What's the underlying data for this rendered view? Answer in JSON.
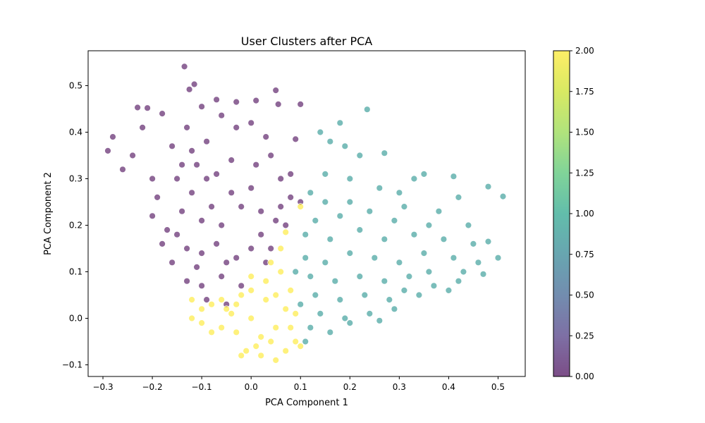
{
  "chart_data": {
    "type": "scatter",
    "title": "User Clusters after PCA",
    "xlabel": "PCA Component 1",
    "ylabel": "PCA Component 2",
    "xlim": [
      -0.33,
      0.555
    ],
    "ylim": [
      -0.125,
      0.575
    ],
    "x_ticks": [
      -0.3,
      -0.2,
      -0.1,
      0.0,
      0.1,
      0.2,
      0.3,
      0.4,
      0.5
    ],
    "x_tick_labels": [
      "−0.3",
      "−0.2",
      "−0.1",
      "0.0",
      "0.1",
      "0.2",
      "0.3",
      "0.4",
      "0.5"
    ],
    "y_ticks": [
      -0.1,
      0.0,
      0.1,
      0.2,
      0.3,
      0.4,
      0.5
    ],
    "y_tick_labels": [
      "−0.1",
      "0.0",
      "0.1",
      "0.2",
      "0.3",
      "0.4",
      "0.5"
    ],
    "grid": false,
    "marker_alpha": 0.6,
    "marker_edge_color": "#ffffff",
    "colormap": "viridis",
    "colorbar": {
      "range": [
        0.0,
        2.0
      ],
      "ticks": [
        0.0,
        0.25,
        0.5,
        0.75,
        1.0,
        1.25,
        1.5,
        1.75,
        2.0
      ],
      "tick_labels": [
        "0.00",
        "0.25",
        "0.50",
        "0.75",
        "1.00",
        "1.25",
        "1.50",
        "1.75",
        "2.00"
      ],
      "colors": [
        "#440154",
        "#21918c",
        "#fde725"
      ]
    },
    "series": [
      {
        "cluster": 0,
        "color": "#440154",
        "points": [
          [
            -0.135,
            0.541
          ],
          [
            -0.115,
            0.503
          ],
          [
            -0.125,
            0.492
          ],
          [
            0.05,
            0.49
          ],
          [
            -0.23,
            0.453
          ],
          [
            -0.21,
            0.452
          ],
          [
            -0.07,
            0.47
          ],
          [
            -0.03,
            0.465
          ],
          [
            -0.29,
            0.36
          ],
          [
            -0.28,
            0.39
          ],
          [
            -0.18,
            0.44
          ],
          [
            -0.13,
            0.41
          ],
          [
            -0.1,
            0.455
          ],
          [
            -0.06,
            0.436
          ],
          [
            0.01,
            0.468
          ],
          [
            0.055,
            0.46
          ],
          [
            0.1,
            0.46
          ],
          [
            -0.26,
            0.32
          ],
          [
            -0.24,
            0.35
          ],
          [
            -0.22,
            0.41
          ],
          [
            -0.16,
            0.37
          ],
          [
            -0.12,
            0.36
          ],
          [
            -0.09,
            0.38
          ],
          [
            -0.03,
            0.41
          ],
          [
            0.0,
            0.42
          ],
          [
            0.03,
            0.39
          ],
          [
            0.09,
            0.385
          ],
          [
            -0.2,
            0.3
          ],
          [
            -0.19,
            0.26
          ],
          [
            -0.15,
            0.3
          ],
          [
            -0.11,
            0.33
          ],
          [
            -0.07,
            0.31
          ],
          [
            -0.04,
            0.34
          ],
          [
            0.01,
            0.33
          ],
          [
            0.04,
            0.35
          ],
          [
            0.06,
            0.3
          ],
          [
            -0.2,
            0.22
          ],
          [
            -0.17,
            0.19
          ],
          [
            -0.14,
            0.23
          ],
          [
            -0.1,
            0.21
          ],
          [
            -0.06,
            0.2
          ],
          [
            -0.02,
            0.24
          ],
          [
            0.02,
            0.23
          ],
          [
            0.05,
            0.21
          ],
          [
            0.08,
            0.26
          ],
          [
            -0.16,
            0.12
          ],
          [
            -0.13,
            0.15
          ],
          [
            -0.1,
            0.14
          ],
          [
            -0.07,
            0.16
          ],
          [
            -0.03,
            0.13
          ],
          [
            0.0,
            0.15
          ],
          [
            0.03,
            0.12
          ],
          [
            -0.13,
            0.08
          ],
          [
            -0.1,
            0.07
          ],
          [
            -0.06,
            0.09
          ],
          [
            -0.02,
            0.07
          ],
          [
            -0.09,
            0.04
          ],
          [
            -0.05,
            0.03
          ],
          [
            -0.12,
            0.27
          ],
          [
            0.07,
            0.2
          ],
          [
            0.1,
            0.25
          ],
          [
            -0.04,
            0.27
          ],
          [
            0.06,
            0.24
          ],
          [
            -0.15,
            0.18
          ],
          [
            -0.08,
            0.24
          ],
          [
            0.02,
            0.18
          ],
          [
            -0.11,
            0.11
          ],
          [
            -0.05,
            0.12
          ],
          [
            0.04,
            0.15
          ],
          [
            -0.18,
            0.16
          ],
          [
            -0.09,
            0.3
          ],
          [
            0.0,
            0.28
          ],
          [
            -0.14,
            0.33
          ],
          [
            0.08,
            0.31
          ]
        ]
      },
      {
        "cluster": 1,
        "color": "#21918c",
        "points": [
          [
            0.235,
            0.449
          ],
          [
            0.18,
            0.42
          ],
          [
            0.14,
            0.4
          ],
          [
            0.16,
            0.38
          ],
          [
            0.19,
            0.37
          ],
          [
            0.22,
            0.35
          ],
          [
            0.27,
            0.355
          ],
          [
            0.35,
            0.31
          ],
          [
            0.41,
            0.305
          ],
          [
            0.33,
            0.3
          ],
          [
            0.48,
            0.283
          ],
          [
            0.51,
            0.262
          ],
          [
            0.42,
            0.26
          ],
          [
            0.3,
            0.27
          ],
          [
            0.26,
            0.28
          ],
          [
            0.2,
            0.3
          ],
          [
            0.15,
            0.31
          ],
          [
            0.12,
            0.27
          ],
          [
            0.24,
            0.23
          ],
          [
            0.31,
            0.24
          ],
          [
            0.38,
            0.23
          ],
          [
            0.44,
            0.2
          ],
          [
            0.36,
            0.2
          ],
          [
            0.29,
            0.21
          ],
          [
            0.18,
            0.22
          ],
          [
            0.13,
            0.21
          ],
          [
            0.11,
            0.18
          ],
          [
            0.16,
            0.17
          ],
          [
            0.22,
            0.19
          ],
          [
            0.27,
            0.17
          ],
          [
            0.33,
            0.18
          ],
          [
            0.39,
            0.17
          ],
          [
            0.45,
            0.16
          ],
          [
            0.48,
            0.165
          ],
          [
            0.5,
            0.13
          ],
          [
            0.46,
            0.12
          ],
          [
            0.41,
            0.13
          ],
          [
            0.35,
            0.14
          ],
          [
            0.3,
            0.12
          ],
          [
            0.25,
            0.13
          ],
          [
            0.2,
            0.14
          ],
          [
            0.15,
            0.12
          ],
          [
            0.11,
            0.13
          ],
          [
            0.12,
            0.09
          ],
          [
            0.17,
            0.08
          ],
          [
            0.22,
            0.09
          ],
          [
            0.27,
            0.08
          ],
          [
            0.32,
            0.09
          ],
          [
            0.37,
            0.07
          ],
          [
            0.42,
            0.08
          ],
          [
            0.47,
            0.095
          ],
          [
            0.4,
            0.06
          ],
          [
            0.34,
            0.05
          ],
          [
            0.28,
            0.04
          ],
          [
            0.23,
            0.05
          ],
          [
            0.18,
            0.04
          ],
          [
            0.13,
            0.05
          ],
          [
            0.1,
            0.03
          ],
          [
            0.14,
            0.01
          ],
          [
            0.19,
            0.0
          ],
          [
            0.24,
            0.01
          ],
          [
            0.29,
            0.02
          ],
          [
            0.12,
            -0.02
          ],
          [
            0.16,
            -0.03
          ],
          [
            0.11,
            -0.05
          ],
          [
            0.2,
            -0.01
          ],
          [
            0.26,
            -0.005
          ],
          [
            0.31,
            0.06
          ],
          [
            0.36,
            0.1
          ],
          [
            0.43,
            0.1
          ],
          [
            0.15,
            0.25
          ],
          [
            0.2,
            0.25
          ],
          [
            0.09,
            0.1
          ]
        ]
      },
      {
        "cluster": 2,
        "color": "#fde725",
        "points": [
          [
            -0.12,
            0.04
          ],
          [
            -0.12,
            0.0
          ],
          [
            -0.1,
            -0.01
          ],
          [
            -0.08,
            0.03
          ],
          [
            -0.06,
            -0.02
          ],
          [
            -0.05,
            0.02
          ],
          [
            -0.03,
            -0.03
          ],
          [
            -0.02,
            0.05
          ],
          [
            0.0,
            0.0
          ],
          [
            0.02,
            -0.04
          ],
          [
            0.03,
            0.04
          ],
          [
            0.05,
            -0.02
          ],
          [
            0.07,
            0.02
          ],
          [
            0.09,
            -0.05
          ],
          [
            0.08,
            0.06
          ],
          [
            0.06,
            0.1
          ],
          [
            0.03,
            0.08
          ],
          [
            0.0,
            0.06
          ],
          [
            -0.04,
            0.01
          ],
          [
            -0.01,
            -0.07
          ],
          [
            0.02,
            -0.08
          ],
          [
            0.05,
            -0.09
          ],
          [
            0.07,
            -0.07
          ],
          [
            0.1,
            -0.06
          ],
          [
            0.09,
            0.01
          ],
          [
            0.04,
            0.12
          ],
          [
            0.06,
            0.15
          ],
          [
            0.07,
            0.185
          ],
          [
            -0.02,
            -0.08
          ],
          [
            0.01,
            -0.06
          ],
          [
            -0.08,
            -0.03
          ],
          [
            -0.06,
            0.04
          ],
          [
            0.04,
            -0.05
          ],
          [
            0.0,
            0.09
          ],
          [
            -0.1,
            0.02
          ],
          [
            0.08,
            -0.02
          ],
          [
            0.05,
            0.05
          ],
          [
            -0.03,
            0.03
          ],
          [
            0.1,
            0.24
          ]
        ]
      }
    ]
  }
}
